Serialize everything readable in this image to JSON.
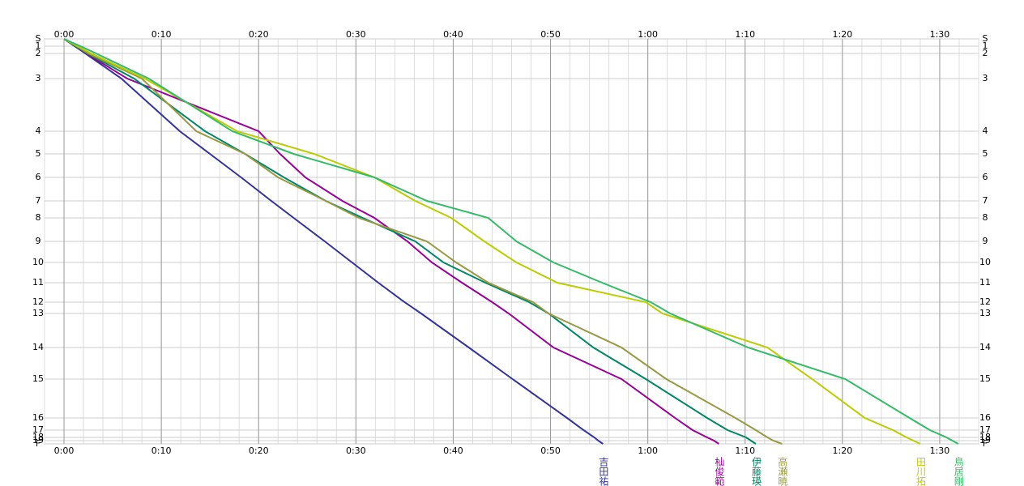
{
  "chart_data": {
    "type": "line",
    "xlim": [
      -2,
      94
    ],
    "ylim": [
      0,
      500
    ],
    "x_minor_step": 2,
    "xticks": [
      {
        "value": 0,
        "label": "0:00"
      },
      {
        "value": 10,
        "label": "0:10"
      },
      {
        "value": 20,
        "label": "0:20"
      },
      {
        "value": 30,
        "label": "0:30"
      },
      {
        "value": 40,
        "label": "0:40"
      },
      {
        "value": 50,
        "label": "0:50"
      },
      {
        "value": 60,
        "label": "1:00"
      },
      {
        "value": 70,
        "label": "1:10"
      },
      {
        "value": 80,
        "label": "1:20"
      },
      {
        "value": 90,
        "label": "1:30"
      }
    ],
    "controls": [
      "S",
      "1",
      "2",
      "3",
      "4",
      "5",
      "6",
      "7",
      "8",
      "9",
      "10",
      "11",
      "12",
      "13",
      "14",
      "15",
      "16",
      "17",
      "18",
      "19",
      "F"
    ],
    "control_distance": [
      0,
      9,
      18,
      49,
      114,
      142,
      171,
      200,
      221,
      250,
      276,
      301,
      325,
      339,
      381,
      420,
      468,
      483,
      492,
      496,
      500
    ],
    "series": [
      {
        "name": "吉田祐",
        "color": "#333399",
        "values": [
          0,
          1.1,
          2.2,
          5.9,
          11.9,
          15.0,
          18.2,
          21.3,
          23.6,
          26.8,
          29.6,
          32.3,
          35.0,
          36.7,
          41.6,
          46.1,
          51.7,
          53.4,
          54.5,
          54.9,
          55.4
        ]
      },
      {
        "name": "杣俊範",
        "color": "#990099",
        "values": [
          0,
          1.2,
          2.3,
          6.5,
          20.0,
          22.2,
          24.8,
          28.6,
          31.9,
          35.3,
          37.8,
          40.9,
          44.0,
          45.7,
          50.3,
          57.3,
          62.8,
          64.6,
          66.1,
          66.8,
          67.3
        ]
      },
      {
        "name": "伊藤瑛",
        "color": "#008866",
        "values": [
          0,
          1.2,
          2.4,
          7.2,
          14.5,
          18.6,
          22.6,
          26.9,
          30.7,
          36.1,
          39.0,
          43.3,
          47.8,
          49.8,
          54.4,
          59.8,
          66.1,
          68.2,
          70.1,
          70.6,
          71.1
        ]
      },
      {
        "name": "高瀬暁",
        "color": "#999944",
        "values": [
          0,
          1.3,
          2.5,
          8.0,
          13.6,
          18.6,
          22.0,
          26.9,
          30.3,
          37.3,
          40.3,
          43.6,
          48.2,
          49.8,
          57.3,
          61.9,
          69.0,
          71.1,
          72.3,
          72.9,
          73.8
        ]
      },
      {
        "name": "田川拓",
        "color": "#bbcc00",
        "values": [
          0,
          1.4,
          2.8,
          8.3,
          17.8,
          25.7,
          31.9,
          36.1,
          39.8,
          43.2,
          46.5,
          50.7,
          59.8,
          61.5,
          72.3,
          76.9,
          82.3,
          85.2,
          86.6,
          87.3,
          88.0
        ]
      },
      {
        "name": "鳥居剛",
        "color": "#33bb66",
        "values": [
          0,
          1.7,
          3.3,
          8.7,
          17.3,
          23.6,
          31.9,
          37.3,
          43.6,
          46.5,
          50.3,
          55.3,
          60.3,
          62.3,
          70.3,
          80.3,
          86.9,
          89.0,
          90.7,
          91.3,
          91.9
        ]
      }
    ]
  }
}
